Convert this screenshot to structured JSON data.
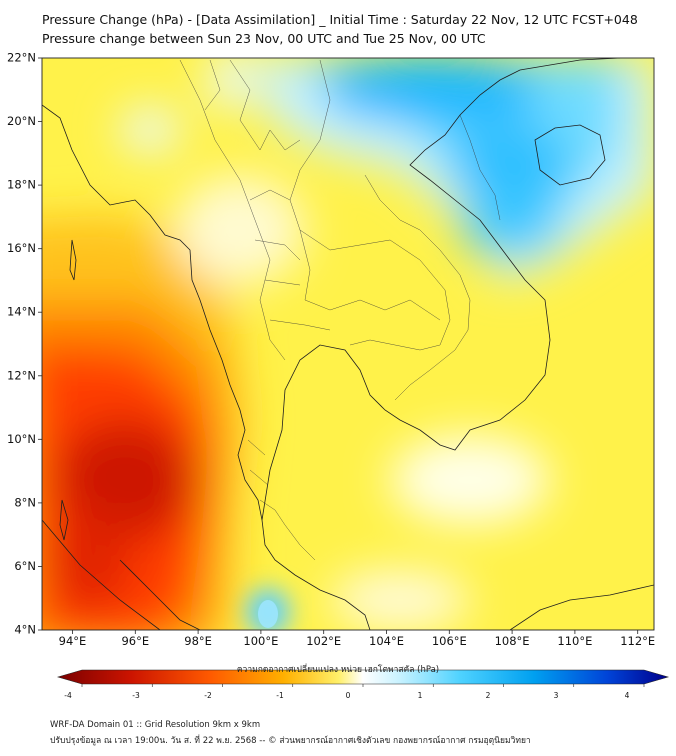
{
  "header": {
    "title": "Pressure Change (hPa) - [Data Assimilation] _ Initial Time : Saturday 22 Nov, 12 UTC FCST+048",
    "subtitle": "Pressure change between Sun 23 Nov, 00 UTC and Tue 25 Nov, 00 UTC"
  },
  "map": {
    "lat_labels": [
      "22°N",
      "20°N",
      "18°N",
      "16°N",
      "14°N",
      "12°N",
      "10°N",
      "8°N",
      "6°N",
      "4°N"
    ],
    "lon_labels": [
      "94°E",
      "96°E",
      "98°E",
      "100°E",
      "102°E",
      "104°E",
      "106°E",
      "108°E",
      "110°E",
      "112°E"
    ],
    "lat_range": [
      4,
      22
    ],
    "lon_range": [
      93,
      112.5
    ],
    "colors": {
      "strong_fall": "#b01000",
      "fall": "#ff3c00",
      "mild_fall": "#ffb400",
      "neutral": "#fff86a",
      "rise": "#6fdcff",
      "strong_rise": "#00a8ff",
      "coast": "#222222",
      "borders": "#333333"
    }
  },
  "colorbar": {
    "title": "ความกดอากาศเปลี่ยนแปลง หน่วย เฮกโตพาสคัล (hPa)",
    "ticks": [
      "-4",
      "-3",
      "-2",
      "-1",
      "0",
      "1",
      "2",
      "3",
      "4"
    ],
    "range": [
      -4,
      4
    ]
  },
  "footer": {
    "line1": "WRF-DA Domain 01 :: Grid Resolution 9km x 9km",
    "line2": "ปรับปรุงข้อมูล ณ เวลา 19:00น. วัน ส. ที่ 22 พ.ย. 2568 -- © ส่วนพยากรณ์อากาศเชิงตัวเลข กองพยากรณ์อากาศ กรมอุตุนิยมวิทยา"
  }
}
